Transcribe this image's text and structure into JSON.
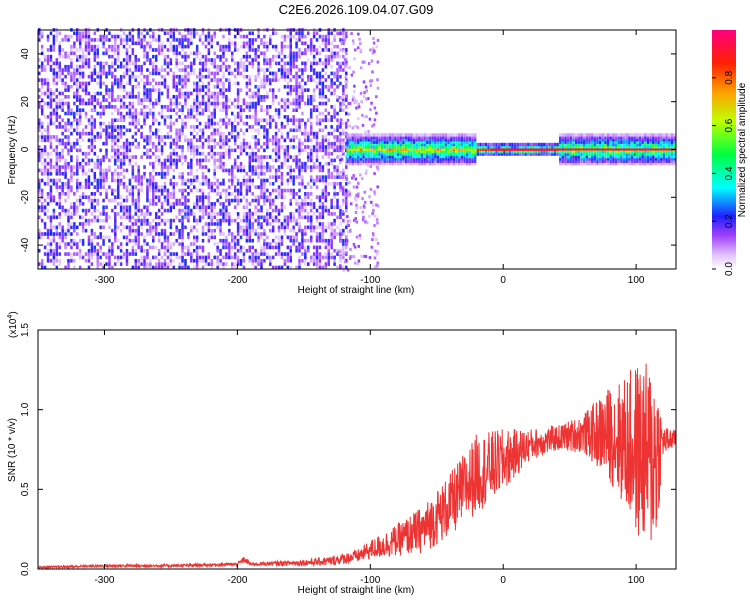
{
  "title": "C2E6.2026.109.04.07.G09",
  "chart_data": [
    {
      "type": "heatmap",
      "title": "C2E6.2026.109.04.07.G09",
      "xlabel": "Height of straight line (km)",
      "ylabel": "Frequency (Hz)",
      "xlim": [
        -350,
        130
      ],
      "ylim": [
        -50,
        50
      ],
      "xticks": [
        -300,
        -200,
        -100,
        0,
        100
      ],
      "yticks": [
        -40,
        -20,
        0,
        20,
        40
      ],
      "xtick_labels": [
        "-300",
        "-200",
        "-100",
        "0",
        "100"
      ],
      "ytick_labels": [
        "-40",
        "-20",
        "0",
        "20",
        "40"
      ],
      "colorbar": {
        "label": "Normalized spectral amplitude",
        "range": [
          0,
          1
        ],
        "ticks": [
          0.0,
          0.2,
          0.4,
          0.6,
          0.8
        ],
        "tick_labels": [
          "0.0",
          "0.2",
          "0.4",
          "0.6",
          "0.8"
        ],
        "colors": [
          "#ffffff",
          "#c080ff",
          "#8000ff",
          "#0000ff",
          "#00ffff",
          "#00ff00",
          "#ffff00",
          "#ff8000",
          "#ff0000",
          "#ff0080"
        ]
      },
      "regions": [
        {
          "x_range": [
            -350,
            -118
          ],
          "description_level": 0.2,
          "freq_spread": 50
        },
        {
          "x_range": [
            -118,
            130
          ],
          "description_level": 0.5,
          "freq_spread": 6,
          "center_freq": 0
        }
      ]
    },
    {
      "type": "line",
      "xlabel": "Height of straight line (km)",
      "ylabel": "SNR (10 * v/v)",
      "scale_label": "(x10",
      "scale_exponent": "4",
      "xlim": [
        -350,
        130
      ],
      "ylim": [
        0,
        1.5
      ],
      "xticks": [
        -300,
        -200,
        -100,
        0,
        100
      ],
      "yticks": [
        0.0,
        0.5,
        1.0,
        1.5
      ],
      "xtick_labels": [
        "-300",
        "-200",
        "-100",
        "0",
        "100"
      ],
      "ytick_labels": [
        "0.0",
        "0.5",
        "1.0",
        "1.5"
      ],
      "color": "#ee3333",
      "envelope": {
        "x": [
          -350,
          -300,
          -250,
          -200,
          -195,
          -190,
          -150,
          -130,
          -110,
          -100,
          -80,
          -60,
          -40,
          -20,
          0,
          20,
          40,
          60,
          80,
          90,
          100,
          110,
          115,
          120,
          130
        ],
        "mean": [
          0.01,
          0.02,
          0.02,
          0.03,
          0.06,
          0.03,
          0.04,
          0.05,
          0.08,
          0.12,
          0.18,
          0.25,
          0.4,
          0.6,
          0.68,
          0.78,
          0.82,
          0.85,
          0.85,
          0.8,
          0.75,
          0.7,
          0.72,
          0.8,
          0.82
        ],
        "spread": [
          0.005,
          0.01,
          0.01,
          0.01,
          0.02,
          0.01,
          0.02,
          0.03,
          0.04,
          0.06,
          0.1,
          0.15,
          0.2,
          0.25,
          0.2,
          0.1,
          0.08,
          0.12,
          0.3,
          0.4,
          0.55,
          0.6,
          0.6,
          0.1,
          0.05
        ]
      }
    }
  ]
}
